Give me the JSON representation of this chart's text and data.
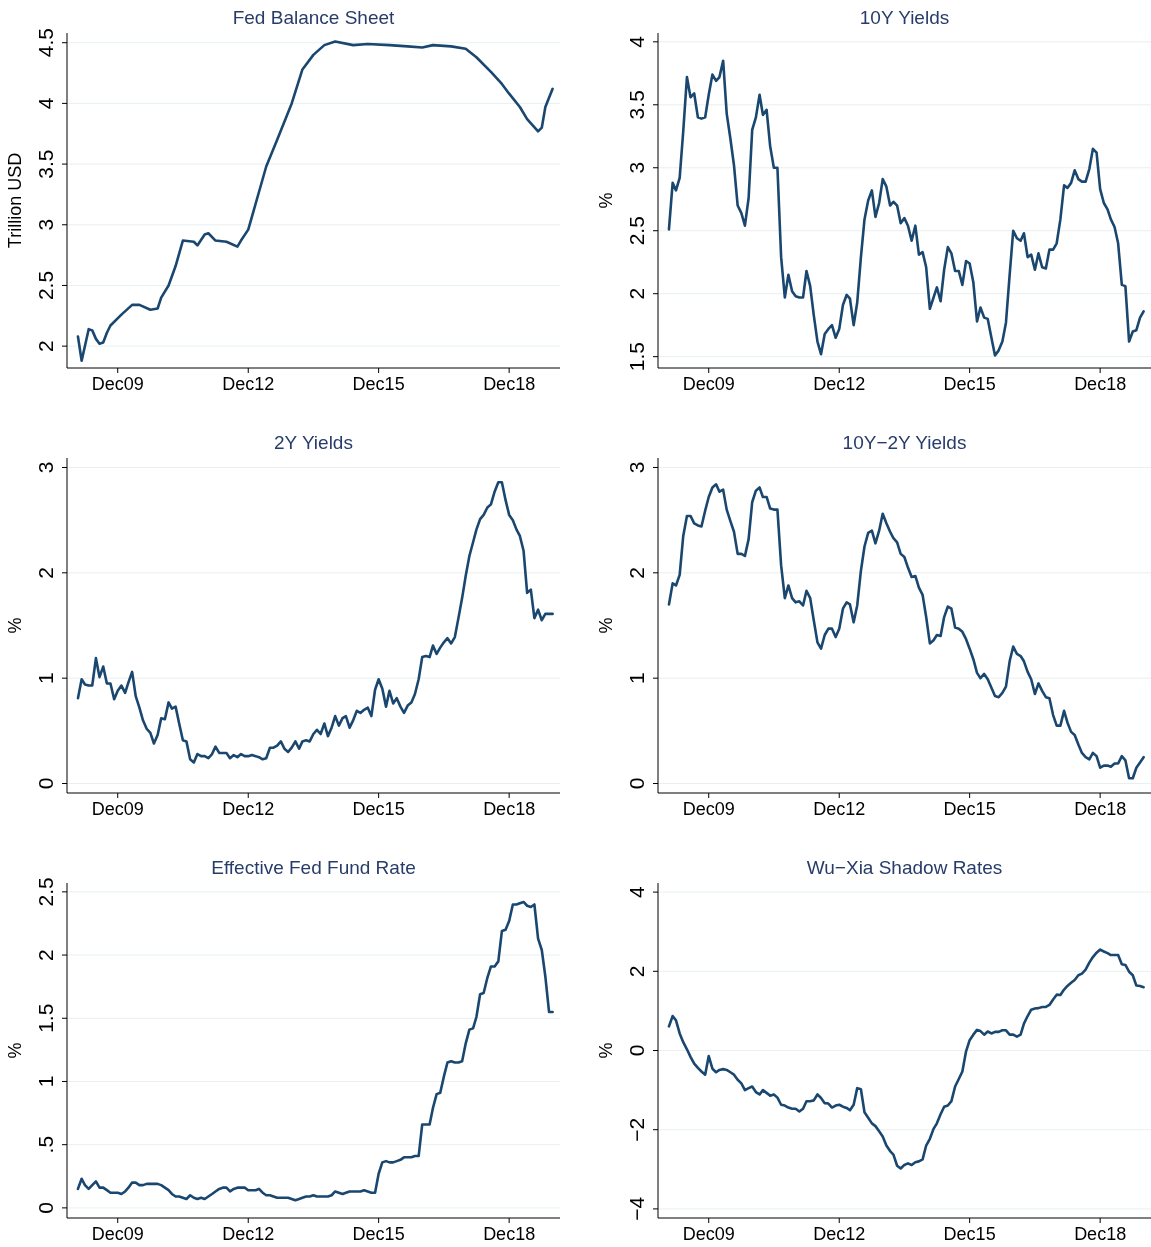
{
  "chart_data": [
    {
      "type": "line",
      "title": "Fed Balance Sheet",
      "ylabel": "Trillion USD",
      "x": [
        "2009-01",
        "2009-02",
        "2009-04",
        "2009-05",
        "2009-06",
        "2009-07",
        "2009-08",
        "2009-09",
        "2009-10",
        "2010-01",
        "2010-04",
        "2010-06",
        "2010-09",
        "2010-11",
        "2010-12",
        "2011-02",
        "2011-04",
        "2011-06",
        "2011-09",
        "2011-10",
        "2011-12",
        "2012-01",
        "2012-03",
        "2012-06",
        "2012-09",
        "2012-10",
        "2012-12",
        "2013-03",
        "2013-05",
        "2013-08",
        "2013-12",
        "2014-03",
        "2014-06",
        "2014-09",
        "2014-12",
        "2015-05",
        "2015-09",
        "2016-03",
        "2016-08",
        "2016-12",
        "2017-03",
        "2017-08",
        "2017-12",
        "2018-03",
        "2018-07",
        "2018-10",
        "2018-12",
        "2019-03",
        "2019-05",
        "2019-08",
        "2019-09",
        "2019-10",
        "2019-12"
      ],
      "series": [
        {
          "color": "#1a476f",
          "values": [
            2.08,
            1.88,
            2.14,
            2.13,
            2.06,
            2.02,
            2.03,
            2.11,
            2.17,
            2.26,
            2.34,
            2.34,
            2.3,
            2.31,
            2.4,
            2.5,
            2.66,
            2.87,
            2.86,
            2.83,
            2.92,
            2.93,
            2.87,
            2.86,
            2.82,
            2.87,
            2.96,
            3.27,
            3.48,
            3.7,
            4.0,
            4.28,
            4.4,
            4.48,
            4.51,
            4.48,
            4.49,
            4.48,
            4.47,
            4.46,
            4.48,
            4.47,
            4.45,
            4.38,
            4.26,
            4.16,
            4.08,
            3.97,
            3.87,
            3.77,
            3.8,
            3.97,
            4.12
          ]
        }
      ],
      "xlim": [
        "2008-10",
        "2020-02"
      ],
      "xticks": [
        {
          "value": "2009-12",
          "label": "Dec09"
        },
        {
          "value": "2012-12",
          "label": "Dec12"
        },
        {
          "value": "2015-12",
          "label": "Dec15"
        },
        {
          "value": "2018-12",
          "label": "Dec18"
        }
      ],
      "ylim": [
        1.82,
        4.58
      ],
      "yticks": [
        2,
        2.5,
        3,
        3.5,
        4,
        4.5
      ],
      "grid": "y"
    },
    {
      "type": "line",
      "title": "10Y Yields",
      "ylabel": "%",
      "x": [
        "2009-01",
        "2009-02",
        "2009-03",
        "2009-04",
        "2009-05",
        "2009-06",
        "2009-07",
        "2009-08",
        "2009-09",
        "2009-10",
        "2009-11",
        "2009-12",
        "2010-01",
        "2010-02",
        "2010-03",
        "2010-04",
        "2010-05",
        "2010-06",
        "2010-07",
        "2010-08",
        "2010-09",
        "2010-10",
        "2010-11",
        "2010-12",
        "2011-01",
        "2011-02",
        "2011-03",
        "2011-04",
        "2011-05",
        "2011-06",
        "2011-07",
        "2011-08",
        "2011-09",
        "2011-10",
        "2011-11",
        "2011-12",
        "2012-01",
        "2012-02",
        "2012-03",
        "2012-04",
        "2012-05",
        "2012-06",
        "2012-07",
        "2012-08",
        "2012-09",
        "2012-10",
        "2012-11",
        "2012-12",
        "2013-01",
        "2013-02",
        "2013-03",
        "2013-04",
        "2013-05",
        "2013-06",
        "2013-07",
        "2013-08",
        "2013-09",
        "2013-10",
        "2013-11",
        "2013-12",
        "2014-01",
        "2014-02",
        "2014-03",
        "2014-04",
        "2014-05",
        "2014-06",
        "2014-07",
        "2014-08",
        "2014-09",
        "2014-10",
        "2014-11",
        "2014-12",
        "2015-01",
        "2015-02",
        "2015-03",
        "2015-04",
        "2015-05",
        "2015-06",
        "2015-07",
        "2015-08",
        "2015-09",
        "2015-10",
        "2015-11",
        "2015-12",
        "2016-01",
        "2016-02",
        "2016-03",
        "2016-04",
        "2016-05",
        "2016-06",
        "2016-07",
        "2016-08",
        "2016-09",
        "2016-10",
        "2016-11",
        "2016-12",
        "2017-01",
        "2017-02",
        "2017-03",
        "2017-04",
        "2017-05",
        "2017-06",
        "2017-07",
        "2017-08",
        "2017-09",
        "2017-10",
        "2017-11",
        "2017-12",
        "2018-01",
        "2018-02",
        "2018-03",
        "2018-04",
        "2018-05",
        "2018-06",
        "2018-07",
        "2018-08",
        "2018-09",
        "2018-10",
        "2018-11",
        "2018-12",
        "2019-01",
        "2019-02",
        "2019-03",
        "2019-04",
        "2019-05",
        "2019-06",
        "2019-07",
        "2019-08",
        "2019-09",
        "2019-10",
        "2019-11",
        "2019-12"
      ],
      "series": [
        {
          "color": "#1a476f",
          "values": [
            2.51,
            2.88,
            2.82,
            2.92,
            3.29,
            3.72,
            3.56,
            3.59,
            3.4,
            3.39,
            3.4,
            3.58,
            3.74,
            3.69,
            3.72,
            3.85,
            3.43,
            3.23,
            3.02,
            2.7,
            2.64,
            2.54,
            2.76,
            3.3,
            3.4,
            3.58,
            3.42,
            3.46,
            3.17,
            3.0,
            3.0,
            2.29,
            1.97,
            2.15,
            2.02,
            1.98,
            1.97,
            1.97,
            2.18,
            2.06,
            1.83,
            1.62,
            1.52,
            1.68,
            1.72,
            1.75,
            1.65,
            1.72,
            1.91,
            1.99,
            1.96,
            1.75,
            1.93,
            2.29,
            2.59,
            2.74,
            2.82,
            2.61,
            2.72,
            2.91,
            2.85,
            2.7,
            2.73,
            2.7,
            2.56,
            2.6,
            2.54,
            2.42,
            2.54,
            2.31,
            2.33,
            2.21,
            1.88,
            1.97,
            2.05,
            1.94,
            2.19,
            2.37,
            2.32,
            2.18,
            2.18,
            2.07,
            2.26,
            2.24,
            2.09,
            1.78,
            1.89,
            1.81,
            1.8,
            1.65,
            1.51,
            1.55,
            1.62,
            1.77,
            2.15,
            2.5,
            2.44,
            2.42,
            2.48,
            2.29,
            2.31,
            2.19,
            2.32,
            2.21,
            2.2,
            2.35,
            2.35,
            2.4,
            2.59,
            2.86,
            2.84,
            2.88,
            2.98,
            2.91,
            2.89,
            2.89,
            2.99,
            3.15,
            3.12,
            2.83,
            2.72,
            2.67,
            2.59,
            2.53,
            2.4,
            2.07,
            2.06,
            1.62,
            1.7,
            1.71,
            1.81,
            1.86
          ]
        }
      ],
      "xlim": [
        "2008-10",
        "2020-02"
      ],
      "xticks": [
        {
          "value": "2009-12",
          "label": "Dec09"
        },
        {
          "value": "2012-12",
          "label": "Dec12"
        },
        {
          "value": "2015-12",
          "label": "Dec15"
        },
        {
          "value": "2018-12",
          "label": "Dec18"
        }
      ],
      "ylim": [
        1.41,
        4.07
      ],
      "yticks": [
        1.5,
        2,
        2.5,
        3,
        3.5,
        4
      ],
      "grid": "y"
    },
    {
      "type": "line",
      "title": "2Y Yields",
      "ylabel": "%",
      "x": [
        "2009-01",
        "2009-02",
        "2009-03",
        "2009-04",
        "2009-05",
        "2009-06",
        "2009-07",
        "2009-08",
        "2009-09",
        "2009-10",
        "2009-11",
        "2009-12",
        "2010-01",
        "2010-02",
        "2010-03",
        "2010-04",
        "2010-05",
        "2010-06",
        "2010-07",
        "2010-08",
        "2010-09",
        "2010-10",
        "2010-11",
        "2010-12",
        "2011-01",
        "2011-02",
        "2011-03",
        "2011-04",
        "2011-05",
        "2011-06",
        "2011-07",
        "2011-08",
        "2011-09",
        "2011-10",
        "2011-11",
        "2011-12",
        "2012-01",
        "2012-02",
        "2012-03",
        "2012-04",
        "2012-05",
        "2012-06",
        "2012-07",
        "2012-08",
        "2012-09",
        "2012-10",
        "2012-11",
        "2012-12",
        "2013-01",
        "2013-02",
        "2013-03",
        "2013-04",
        "2013-05",
        "2013-06",
        "2013-07",
        "2013-08",
        "2013-09",
        "2013-10",
        "2013-11",
        "2013-12",
        "2014-01",
        "2014-02",
        "2014-03",
        "2014-04",
        "2014-05",
        "2014-06",
        "2014-07",
        "2014-08",
        "2014-09",
        "2014-10",
        "2014-11",
        "2014-12",
        "2015-01",
        "2015-02",
        "2015-03",
        "2015-04",
        "2015-05",
        "2015-06",
        "2015-07",
        "2015-08",
        "2015-09",
        "2015-10",
        "2015-11",
        "2015-12",
        "2016-01",
        "2016-02",
        "2016-03",
        "2016-04",
        "2016-05",
        "2016-06",
        "2016-07",
        "2016-08",
        "2016-09",
        "2016-10",
        "2016-11",
        "2016-12",
        "2017-01",
        "2017-02",
        "2017-03",
        "2017-04",
        "2017-05",
        "2017-06",
        "2017-07",
        "2017-08",
        "2017-09",
        "2017-10",
        "2017-11",
        "2017-12",
        "2018-01",
        "2018-02",
        "2018-03",
        "2018-04",
        "2018-05",
        "2018-06",
        "2018-07",
        "2018-08",
        "2018-09",
        "2018-10",
        "2018-11",
        "2018-12",
        "2019-01",
        "2019-02",
        "2019-03",
        "2019-04",
        "2019-05",
        "2019-06",
        "2019-07",
        "2019-08",
        "2019-09",
        "2019-10",
        "2019-11",
        "2019-12"
      ],
      "series": [
        {
          "color": "#1a476f",
          "values": [
            0.81,
            0.99,
            0.94,
            0.93,
            0.93,
            1.19,
            1.01,
            1.11,
            0.95,
            0.95,
            0.8,
            0.88,
            0.93,
            0.86,
            0.96,
            1.06,
            0.83,
            0.72,
            0.6,
            0.52,
            0.48,
            0.38,
            0.46,
            0.62,
            0.61,
            0.77,
            0.71,
            0.73,
            0.57,
            0.41,
            0.4,
            0.23,
            0.2,
            0.28,
            0.26,
            0.26,
            0.24,
            0.28,
            0.35,
            0.29,
            0.29,
            0.29,
            0.24,
            0.27,
            0.25,
            0.28,
            0.26,
            0.26,
            0.27,
            0.26,
            0.25,
            0.23,
            0.24,
            0.34,
            0.34,
            0.36,
            0.4,
            0.33,
            0.3,
            0.34,
            0.4,
            0.33,
            0.4,
            0.41,
            0.4,
            0.47,
            0.51,
            0.47,
            0.57,
            0.45,
            0.53,
            0.64,
            0.55,
            0.62,
            0.64,
            0.53,
            0.6,
            0.69,
            0.67,
            0.7,
            0.72,
            0.64,
            0.89,
            0.99,
            0.9,
            0.73,
            0.88,
            0.76,
            0.81,
            0.73,
            0.67,
            0.74,
            0.77,
            0.85,
            0.99,
            1.2,
            1.21,
            1.2,
            1.31,
            1.23,
            1.29,
            1.34,
            1.38,
            1.33,
            1.39,
            1.57,
            1.76,
            1.97,
            2.16,
            2.29,
            2.41,
            2.51,
            2.55,
            2.62,
            2.65,
            2.77,
            2.86,
            2.86,
            2.69,
            2.55,
            2.5,
            2.41,
            2.35,
            2.21,
            1.81,
            1.84,
            1.57,
            1.65,
            1.55,
            1.61,
            1.61,
            1.61
          ]
        }
      ],
      "xlim": [
        "2008-10",
        "2020-02"
      ],
      "xticks": [
        {
          "value": "2009-12",
          "label": "Dec09"
        },
        {
          "value": "2012-12",
          "label": "Dec12"
        },
        {
          "value": "2015-12",
          "label": "Dec15"
        },
        {
          "value": "2018-12",
          "label": "Dec18"
        }
      ],
      "ylim": [
        -0.09,
        3.09
      ],
      "yticks": [
        0,
        1,
        2,
        3
      ],
      "grid": "y"
    },
    {
      "type": "line",
      "title": "10Y−2Y Yields",
      "ylabel": "%",
      "x": [
        "2009-01",
        "2009-02",
        "2009-03",
        "2009-04",
        "2009-05",
        "2009-06",
        "2009-07",
        "2009-08",
        "2009-09",
        "2009-10",
        "2009-11",
        "2009-12",
        "2010-01",
        "2010-02",
        "2010-03",
        "2010-04",
        "2010-05",
        "2010-06",
        "2010-07",
        "2010-08",
        "2010-09",
        "2010-10",
        "2010-11",
        "2010-12",
        "2011-01",
        "2011-02",
        "2011-03",
        "2011-04",
        "2011-05",
        "2011-06",
        "2011-07",
        "2011-08",
        "2011-09",
        "2011-10",
        "2011-11",
        "2011-12",
        "2012-01",
        "2012-02",
        "2012-03",
        "2012-04",
        "2012-05",
        "2012-06",
        "2012-07",
        "2012-08",
        "2012-09",
        "2012-10",
        "2012-11",
        "2012-12",
        "2013-01",
        "2013-02",
        "2013-03",
        "2013-04",
        "2013-05",
        "2013-06",
        "2013-07",
        "2013-08",
        "2013-09",
        "2013-10",
        "2013-11",
        "2013-12",
        "2014-01",
        "2014-02",
        "2014-03",
        "2014-04",
        "2014-05",
        "2014-06",
        "2014-07",
        "2014-08",
        "2014-09",
        "2014-10",
        "2014-11",
        "2014-12",
        "2015-01",
        "2015-02",
        "2015-03",
        "2015-04",
        "2015-05",
        "2015-06",
        "2015-07",
        "2015-08",
        "2015-09",
        "2015-10",
        "2015-11",
        "2015-12",
        "2016-01",
        "2016-02",
        "2016-03",
        "2016-04",
        "2016-05",
        "2016-06",
        "2016-07",
        "2016-08",
        "2016-09",
        "2016-10",
        "2016-11",
        "2016-12",
        "2017-01",
        "2017-02",
        "2017-03",
        "2017-04",
        "2017-05",
        "2017-06",
        "2017-07",
        "2017-08",
        "2017-09",
        "2017-10",
        "2017-11",
        "2017-12",
        "2018-01",
        "2018-02",
        "2018-03",
        "2018-04",
        "2018-05",
        "2018-06",
        "2018-07",
        "2018-08",
        "2018-09",
        "2018-10",
        "2018-11",
        "2018-12",
        "2019-01",
        "2019-02",
        "2019-03",
        "2019-04",
        "2019-05",
        "2019-06",
        "2019-07",
        "2019-08",
        "2019-09",
        "2019-10",
        "2019-11",
        "2019-12"
      ],
      "series": [
        {
          "color": "#1a476f",
          "values": [
            1.7,
            1.9,
            1.88,
            1.98,
            2.35,
            2.54,
            2.54,
            2.47,
            2.45,
            2.44,
            2.59,
            2.72,
            2.81,
            2.84,
            2.77,
            2.79,
            2.6,
            2.49,
            2.39,
            2.18,
            2.18,
            2.16,
            2.32,
            2.67,
            2.78,
            2.81,
            2.72,
            2.72,
            2.61,
            2.6,
            2.6,
            2.07,
            1.76,
            1.88,
            1.76,
            1.72,
            1.73,
            1.69,
            1.83,
            1.76,
            1.55,
            1.34,
            1.28,
            1.41,
            1.47,
            1.47,
            1.39,
            1.47,
            1.66,
            1.72,
            1.7,
            1.53,
            1.69,
            2.02,
            2.25,
            2.38,
            2.4,
            2.28,
            2.4,
            2.56,
            2.47,
            2.39,
            2.33,
            2.29,
            2.18,
            2.15,
            2.05,
            1.96,
            1.97,
            1.86,
            1.79,
            1.58,
            1.33,
            1.36,
            1.41,
            1.4,
            1.58,
            1.68,
            1.66,
            1.48,
            1.47,
            1.44,
            1.37,
            1.28,
            1.18,
            1.05,
            1.0,
            1.04,
            0.99,
            0.91,
            0.83,
            0.82,
            0.86,
            0.92,
            1.16,
            1.3,
            1.23,
            1.21,
            1.16,
            1.06,
            0.99,
            0.85,
            0.95,
            0.88,
            0.82,
            0.81,
            0.65,
            0.55,
            0.55,
            0.69,
            0.58,
            0.49,
            0.46,
            0.37,
            0.29,
            0.25,
            0.23,
            0.29,
            0.26,
            0.15,
            0.17,
            0.17,
            0.16,
            0.19,
            0.19,
            0.26,
            0.22,
            0.05,
            0.05,
            0.15,
            0.2,
            0.25
          ]
        }
      ],
      "xlim": [
        "2008-10",
        "2020-02"
      ],
      "xticks": [
        {
          "value": "2009-12",
          "label": "Dec09"
        },
        {
          "value": "2012-12",
          "label": "Dec12"
        },
        {
          "value": "2015-12",
          "label": "Dec15"
        },
        {
          "value": "2018-12",
          "label": "Dec18"
        }
      ],
      "ylim": [
        -0.09,
        3.09
      ],
      "yticks": [
        0,
        1,
        2,
        3
      ],
      "grid": "y"
    },
    {
      "type": "line",
      "title": "Effective Fed Fund Rate",
      "ylabel": "%",
      "x": [
        "2009-01",
        "2009-02",
        "2009-03",
        "2009-04",
        "2009-05",
        "2009-06",
        "2009-07",
        "2009-08",
        "2009-09",
        "2009-10",
        "2009-11",
        "2009-12",
        "2010-01",
        "2010-02",
        "2010-03",
        "2010-04",
        "2010-05",
        "2010-06",
        "2010-07",
        "2010-08",
        "2010-09",
        "2010-10",
        "2010-11",
        "2010-12",
        "2011-01",
        "2011-02",
        "2011-03",
        "2011-04",
        "2011-05",
        "2011-06",
        "2011-07",
        "2011-08",
        "2011-09",
        "2011-10",
        "2011-11",
        "2011-12",
        "2012-01",
        "2012-02",
        "2012-03",
        "2012-04",
        "2012-05",
        "2012-06",
        "2012-07",
        "2012-08",
        "2012-09",
        "2012-10",
        "2012-11",
        "2012-12",
        "2013-01",
        "2013-02",
        "2013-03",
        "2013-04",
        "2013-05",
        "2013-06",
        "2013-07",
        "2013-08",
        "2013-09",
        "2013-10",
        "2013-11",
        "2013-12",
        "2014-01",
        "2014-02",
        "2014-03",
        "2014-04",
        "2014-05",
        "2014-06",
        "2014-07",
        "2014-08",
        "2014-09",
        "2014-10",
        "2014-11",
        "2014-12",
        "2015-01",
        "2015-02",
        "2015-03",
        "2015-04",
        "2015-05",
        "2015-06",
        "2015-07",
        "2015-08",
        "2015-09",
        "2015-10",
        "2015-11",
        "2015-12",
        "2016-01",
        "2016-02",
        "2016-03",
        "2016-04",
        "2016-05",
        "2016-06",
        "2016-07",
        "2016-08",
        "2016-09",
        "2016-10",
        "2016-11",
        "2016-12",
        "2017-01",
        "2017-02",
        "2017-03",
        "2017-04",
        "2017-05",
        "2017-06",
        "2017-07",
        "2017-08",
        "2017-09",
        "2017-10",
        "2017-11",
        "2017-12",
        "2018-01",
        "2018-02",
        "2018-03",
        "2018-04",
        "2018-05",
        "2018-06",
        "2018-07",
        "2018-08",
        "2018-09",
        "2018-10",
        "2018-11",
        "2018-12",
        "2019-01",
        "2019-02",
        "2019-03",
        "2019-04",
        "2019-05",
        "2019-06",
        "2019-07",
        "2019-08",
        "2019-09",
        "2019-10",
        "2019-11",
        "2019-12"
      ],
      "series": [
        {
          "color": "#1a476f",
          "values": [
            0.15,
            0.23,
            0.18,
            0.15,
            0.18,
            0.21,
            0.16,
            0.16,
            0.14,
            0.12,
            0.12,
            0.12,
            0.11,
            0.13,
            0.16,
            0.2,
            0.2,
            0.18,
            0.18,
            0.19,
            0.19,
            0.19,
            0.19,
            0.18,
            0.16,
            0.14,
            0.11,
            0.09,
            0.09,
            0.08,
            0.07,
            0.1,
            0.08,
            0.07,
            0.08,
            0.07,
            0.09,
            0.11,
            0.13,
            0.15,
            0.16,
            0.16,
            0.13,
            0.15,
            0.16,
            0.16,
            0.16,
            0.14,
            0.14,
            0.14,
            0.15,
            0.12,
            0.1,
            0.1,
            0.09,
            0.08,
            0.08,
            0.08,
            0.08,
            0.07,
            0.06,
            0.07,
            0.08,
            0.09,
            0.09,
            0.1,
            0.09,
            0.09,
            0.09,
            0.09,
            0.1,
            0.13,
            0.12,
            0.11,
            0.12,
            0.13,
            0.13,
            0.13,
            0.13,
            0.14,
            0.13,
            0.12,
            0.12,
            0.27,
            0.36,
            0.37,
            0.36,
            0.36,
            0.37,
            0.38,
            0.4,
            0.4,
            0.4,
            0.41,
            0.41,
            0.66,
            0.66,
            0.66,
            0.79,
            0.9,
            0.91,
            1.04,
            1.15,
            1.16,
            1.15,
            1.15,
            1.16,
            1.3,
            1.41,
            1.42,
            1.51,
            1.69,
            1.7,
            1.82,
            1.91,
            1.91,
            1.95,
            2.19,
            2.2,
            2.27,
            2.4,
            2.4,
            2.41,
            2.42,
            2.39,
            2.38,
            2.4,
            2.13,
            2.04,
            1.83,
            1.55,
            1.55
          ]
        }
      ],
      "xlim": [
        "2008-10",
        "2020-02"
      ],
      "xticks": [
        {
          "value": "2009-12",
          "label": "Dec09"
        },
        {
          "value": "2012-12",
          "label": "Dec12"
        },
        {
          "value": "2015-12",
          "label": "Dec15"
        },
        {
          "value": "2018-12",
          "label": "Dec18"
        }
      ],
      "ylim": [
        -0.08,
        2.57
      ],
      "yticks": [
        0,
        {
          "value": 0.5,
          "label": ".5"
        },
        1,
        1.5,
        2,
        2.5
      ],
      "grid": "y"
    },
    {
      "type": "line",
      "title": "Wu−Xia Shadow Rates",
      "ylabel": "%",
      "x": [
        "2009-01",
        "2009-02",
        "2009-03",
        "2009-04",
        "2009-05",
        "2009-06",
        "2009-07",
        "2009-08",
        "2009-09",
        "2009-10",
        "2009-11",
        "2009-12",
        "2010-01",
        "2010-02",
        "2010-03",
        "2010-04",
        "2010-05",
        "2010-06",
        "2010-07",
        "2010-08",
        "2010-09",
        "2010-10",
        "2010-11",
        "2010-12",
        "2011-01",
        "2011-02",
        "2011-03",
        "2011-04",
        "2011-05",
        "2011-06",
        "2011-07",
        "2011-08",
        "2011-09",
        "2011-10",
        "2011-11",
        "2011-12",
        "2012-01",
        "2012-02",
        "2012-03",
        "2012-04",
        "2012-05",
        "2012-06",
        "2012-07",
        "2012-08",
        "2012-09",
        "2012-10",
        "2012-11",
        "2012-12",
        "2013-01",
        "2013-02",
        "2013-03",
        "2013-04",
        "2013-05",
        "2013-06",
        "2013-07",
        "2013-08",
        "2013-09",
        "2013-10",
        "2013-11",
        "2013-12",
        "2014-01",
        "2014-02",
        "2014-03",
        "2014-04",
        "2014-05",
        "2014-06",
        "2014-07",
        "2014-08",
        "2014-09",
        "2014-10",
        "2014-11",
        "2014-12",
        "2015-01",
        "2015-02",
        "2015-03",
        "2015-04",
        "2015-05",
        "2015-06",
        "2015-07",
        "2015-08",
        "2015-09",
        "2015-10",
        "2015-11",
        "2015-12",
        "2016-01",
        "2016-02",
        "2016-03",
        "2016-04",
        "2016-05",
        "2016-06",
        "2016-07",
        "2016-08",
        "2016-09",
        "2016-10",
        "2016-11",
        "2016-12",
        "2017-01",
        "2017-02",
        "2017-03",
        "2017-04",
        "2017-05",
        "2017-06",
        "2017-07",
        "2017-08",
        "2017-09",
        "2017-10",
        "2017-11",
        "2017-12",
        "2018-01",
        "2018-02",
        "2018-03",
        "2018-04",
        "2018-05",
        "2018-06",
        "2018-07",
        "2018-08",
        "2018-09",
        "2018-10",
        "2018-11",
        "2018-12",
        "2019-01",
        "2019-02",
        "2019-03",
        "2019-04",
        "2019-05",
        "2019-06",
        "2019-07",
        "2019-08",
        "2019-09",
        "2019-10",
        "2019-11",
        "2019-12"
      ],
      "series": [
        {
          "color": "#1a476f",
          "values": [
            0.61,
            0.87,
            0.76,
            0.43,
            0.21,
            0.03,
            -0.16,
            -0.33,
            -0.44,
            -0.53,
            -0.61,
            -0.14,
            -0.46,
            -0.55,
            -0.49,
            -0.47,
            -0.49,
            -0.55,
            -0.61,
            -0.74,
            -0.83,
            -1.0,
            -0.95,
            -0.91,
            -1.05,
            -1.11,
            -1.0,
            -1.07,
            -1.14,
            -1.11,
            -1.19,
            -1.37,
            -1.39,
            -1.44,
            -1.47,
            -1.47,
            -1.54,
            -1.47,
            -1.28,
            -1.28,
            -1.26,
            -1.11,
            -1.2,
            -1.33,
            -1.34,
            -1.44,
            -1.39,
            -1.37,
            -1.42,
            -1.45,
            -1.51,
            -1.37,
            -0.95,
            -0.98,
            -1.56,
            -1.7,
            -1.84,
            -1.91,
            -2.04,
            -2.17,
            -2.4,
            -2.54,
            -2.63,
            -2.91,
            -2.98,
            -2.89,
            -2.85,
            -2.89,
            -2.82,
            -2.8,
            -2.75,
            -2.4,
            -2.23,
            -1.98,
            -1.84,
            -1.61,
            -1.42,
            -1.39,
            -1.28,
            -0.91,
            -0.72,
            -0.53,
            -0.02,
            0.26,
            0.4,
            0.52,
            0.49,
            0.4,
            0.48,
            0.43,
            0.47,
            0.47,
            0.51,
            0.51,
            0.4,
            0.4,
            0.35,
            0.4,
            0.68,
            0.87,
            1.03,
            1.06,
            1.07,
            1.1,
            1.1,
            1.15,
            1.29,
            1.41,
            1.4,
            1.54,
            1.63,
            1.71,
            1.78,
            1.9,
            1.94,
            2.04,
            2.22,
            2.36,
            2.47,
            2.55,
            2.5,
            2.46,
            2.41,
            2.41,
            2.41,
            2.18,
            2.16,
            1.99,
            1.9,
            1.64,
            1.63,
            1.6
          ]
        }
      ],
      "xlim": [
        "2008-10",
        "2020-02"
      ],
      "xticks": [
        {
          "value": "2009-12",
          "label": "Dec09"
        },
        {
          "value": "2012-12",
          "label": "Dec12"
        },
        {
          "value": "2015-12",
          "label": "Dec15"
        },
        {
          "value": "2018-12",
          "label": "Dec18"
        }
      ],
      "ylim": [
        -4.23,
        4.23
      ],
      "yticks": [
        {
          "value": -4,
          "label": "−4"
        },
        {
          "value": -2,
          "label": "−2"
        },
        0,
        2,
        4
      ],
      "grid": "y"
    }
  ]
}
